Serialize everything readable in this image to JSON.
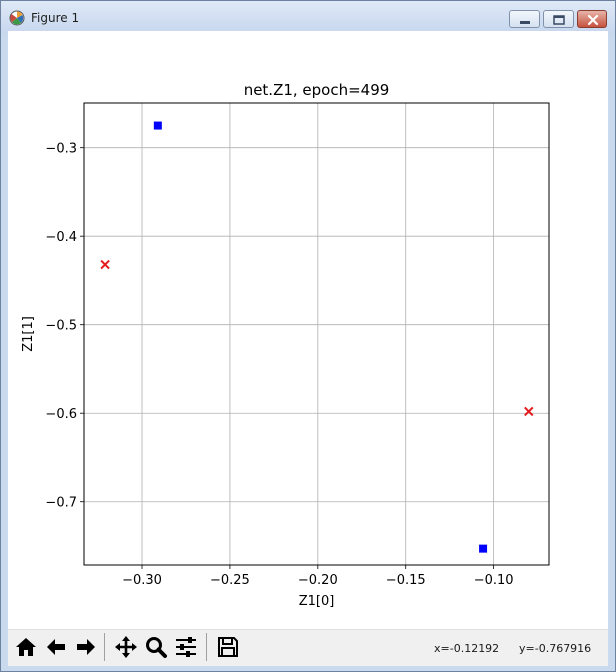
{
  "window": {
    "title": "Figure 1"
  },
  "toolbar": {
    "buttons": [
      "home-icon",
      "back-icon",
      "forward-icon",
      "pan-icon",
      "zoom-icon",
      "configure-subplots-icon",
      "save-icon"
    ],
    "coord_x": "x=-0.12192",
    "coord_y": "y=-0.767916"
  },
  "chart_data": {
    "type": "scatter",
    "title": "net.Z1, epoch=499",
    "xlabel": "Z1[0]",
    "ylabel": "Z1[1]",
    "xlim": [
      -0.333,
      -0.0685
    ],
    "ylim": [
      -0.7715,
      -0.2495
    ],
    "xticks": [
      -0.3,
      -0.25,
      -0.2,
      -0.15,
      -0.1
    ],
    "xtick_labels": [
      "−0.30",
      "−0.25",
      "−0.20",
      "−0.15",
      "−0.10"
    ],
    "yticks": [
      -0.3,
      -0.4,
      -0.5,
      -0.6,
      -0.7
    ],
    "ytick_labels": [
      "−0.3",
      "−0.4",
      "−0.5",
      "−0.6",
      "−0.7"
    ],
    "grid": true,
    "series": [
      {
        "marker": "square",
        "color": "#0000ff",
        "points": [
          [
            -0.291,
            -0.275
          ],
          [
            -0.106,
            -0.753
          ]
        ]
      },
      {
        "marker": "x",
        "color": "#e41a1c",
        "points": [
          [
            -0.321,
            -0.432
          ],
          [
            -0.08,
            -0.598
          ]
        ]
      }
    ]
  }
}
